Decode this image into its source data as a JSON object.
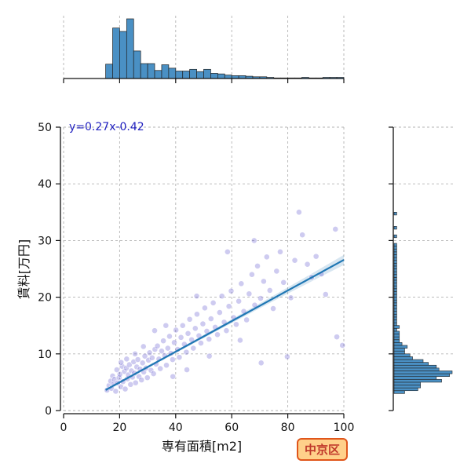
{
  "chart_data": {
    "type": "scatter",
    "x_axis": {
      "label": "専有面積[m2]",
      "lim": [
        0,
        100
      ],
      "ticks": [
        0,
        20,
        40,
        60,
        80,
        100
      ]
    },
    "y_axis": {
      "label": "賃料[万円]",
      "lim": [
        0,
        50
      ],
      "ticks": [
        0,
        10,
        20,
        30,
        40,
        50
      ]
    },
    "grid": true,
    "annotation": "y=0.27x-0.42",
    "badge": "中京区",
    "regression": {
      "slope": 0.27,
      "intercept": -0.42,
      "x_range": [
        15,
        100
      ]
    },
    "scatter_color": "#3a2fc4",
    "line_color": "#1f77b4",
    "hist_color": "#4a90c4",
    "points": [
      [
        15.5,
        3.6
      ],
      [
        16.2,
        4.4
      ],
      [
        16.8,
        5.2
      ],
      [
        17.1,
        3.9
      ],
      [
        17.5,
        6.1
      ],
      [
        17.9,
        4.7
      ],
      [
        18.2,
        5.5
      ],
      [
        18.6,
        3.4
      ],
      [
        19.0,
        7.2
      ],
      [
        19.3,
        4.9
      ],
      [
        19.8,
        5.8
      ],
      [
        20.1,
        6.4
      ],
      [
        20.4,
        4.2
      ],
      [
        20.9,
        7.8
      ],
      [
        21.2,
        5.1
      ],
      [
        21.7,
        6.9
      ],
      [
        22.0,
        3.8
      ],
      [
        22.4,
        7.5
      ],
      [
        22.8,
        5.6
      ],
      [
        23.1,
        6.3
      ],
      [
        23.5,
        8.1
      ],
      [
        23.9,
        4.6
      ],
      [
        24.2,
        7.0
      ],
      [
        24.6,
        5.9
      ],
      [
        25.0,
        8.6
      ],
      [
        25.3,
        6.6
      ],
      [
        25.7,
        4.9
      ],
      [
        26.1,
        7.7
      ],
      [
        26.5,
        9.0
      ],
      [
        26.9,
        6.0
      ],
      [
        27.3,
        7.3
      ],
      [
        27.8,
        5.4
      ],
      [
        28.2,
        8.4
      ],
      [
        28.6,
        6.8
      ],
      [
        29.0,
        9.6
      ],
      [
        29.4,
        7.5
      ],
      [
        29.9,
        5.8
      ],
      [
        30.3,
        8.9
      ],
      [
        30.7,
        10.2
      ],
      [
        31.2,
        7.1
      ],
      [
        31.6,
        9.3
      ],
      [
        32.1,
        6.5
      ],
      [
        32.6,
        10.8
      ],
      [
        33.0,
        8.2
      ],
      [
        33.5,
        11.4
      ],
      [
        34.0,
        9.1
      ],
      [
        34.5,
        7.4
      ],
      [
        35.0,
        10.5
      ],
      [
        35.6,
        12.3
      ],
      [
        36.1,
        9.7
      ],
      [
        36.7,
        8.0
      ],
      [
        37.2,
        11.0
      ],
      [
        37.8,
        13.1
      ],
      [
        38.3,
        10.1
      ],
      [
        38.9,
        9.0
      ],
      [
        39.5,
        12.0
      ],
      [
        40.1,
        14.2
      ],
      [
        40.7,
        10.8
      ],
      [
        41.3,
        9.4
      ],
      [
        41.9,
        12.9
      ],
      [
        42.5,
        15.0
      ],
      [
        43.1,
        11.7
      ],
      [
        43.8,
        10.3
      ],
      [
        44.4,
        13.6
      ],
      [
        45.0,
        16.1
      ],
      [
        45.7,
        12.5
      ],
      [
        46.3,
        11.0
      ],
      [
        47.0,
        14.5
      ],
      [
        47.6,
        17.0
      ],
      [
        48.3,
        13.2
      ],
      [
        49.0,
        11.9
      ],
      [
        49.7,
        15.3
      ],
      [
        50.4,
        18.1
      ],
      [
        51.1,
        14.0
      ],
      [
        51.9,
        12.6
      ],
      [
        52.6,
        16.2
      ],
      [
        53.4,
        19.0
      ],
      [
        54.1,
        14.7
      ],
      [
        54.9,
        13.4
      ],
      [
        55.7,
        17.3
      ],
      [
        56.5,
        20.2
      ],
      [
        57.3,
        15.6
      ],
      [
        58.1,
        14.1
      ],
      [
        59.0,
        18.4
      ],
      [
        59.8,
        21.1
      ],
      [
        60.7,
        16.4
      ],
      [
        61.6,
        15.2
      ],
      [
        62.5,
        19.3
      ],
      [
        63.4,
        22.4
      ],
      [
        64.3,
        17.5
      ],
      [
        65.3,
        16.0
      ],
      [
        66.2,
        20.6
      ],
      [
        67.2,
        24.0
      ],
      [
        68.2,
        18.6
      ],
      [
        69.2,
        25.5
      ],
      [
        70.3,
        19.8
      ],
      [
        71.4,
        22.8
      ],
      [
        72.5,
        27.1
      ],
      [
        73.6,
        21.2
      ],
      [
        74.8,
        18.0
      ],
      [
        76.0,
        24.6
      ],
      [
        77.3,
        28.0
      ],
      [
        78.5,
        22.6
      ],
      [
        79.8,
        9.5
      ],
      [
        81.1,
        19.9
      ],
      [
        82.5,
        26.5
      ],
      [
        84.0,
        35.0
      ],
      [
        85.2,
        31.0
      ],
      [
        87.0,
        25.8
      ],
      [
        88.5,
        23.5
      ],
      [
        90.1,
        27.2
      ],
      [
        92.0,
        24.1
      ],
      [
        93.5,
        20.5
      ],
      [
        97.0,
        32.0
      ],
      [
        97.5,
        13.0
      ],
      [
        99.5,
        11.5
      ],
      [
        68.0,
        30.0
      ],
      [
        70.5,
        8.4
      ],
      [
        63.0,
        12.4
      ],
      [
        58.5,
        28.0
      ],
      [
        44.0,
        7.2
      ],
      [
        47.5,
        20.2
      ],
      [
        52.0,
        9.6
      ],
      [
        36.5,
        15.0
      ],
      [
        39.0,
        6.0
      ],
      [
        32.5,
        14.1
      ],
      [
        28.5,
        11.3
      ],
      [
        25.5,
        10.0
      ],
      [
        22.5,
        9.1
      ],
      [
        20.5,
        8.5
      ]
    ],
    "hist_x": {
      "bin_edges_start": 15,
      "bin_width": 2.5,
      "counts": [
        25,
        88,
        82,
        104,
        48,
        26,
        26,
        14,
        24,
        18,
        13,
        13,
        16,
        12,
        16,
        9,
        8,
        6,
        5,
        5,
        4,
        3,
        3,
        2,
        1,
        1,
        1,
        1,
        2,
        1,
        1,
        2,
        2,
        2
      ]
    },
    "hist_y": {
      "bin_edges_start": 3,
      "bin_width": 0.5,
      "counts": [
        4,
        9,
        10,
        10,
        18,
        16,
        21,
        22,
        17,
        16,
        13,
        11,
        7,
        6,
        4,
        4,
        5,
        3,
        2,
        2,
        2,
        2,
        1,
        2,
        1,
        1,
        1,
        1,
        1,
        1,
        1,
        1,
        1,
        1,
        1,
        1,
        1,
        1,
        1,
        1,
        1,
        1,
        1,
        1,
        1,
        1,
        1,
        1,
        1,
        1,
        1,
        1,
        1,
        0,
        0,
        1,
        0,
        0,
        1,
        0,
        0,
        0,
        0,
        1,
        0,
        0,
        0,
        0,
        0,
        0,
        0,
        0,
        0,
        0,
        0,
        0,
        0
      ]
    }
  }
}
